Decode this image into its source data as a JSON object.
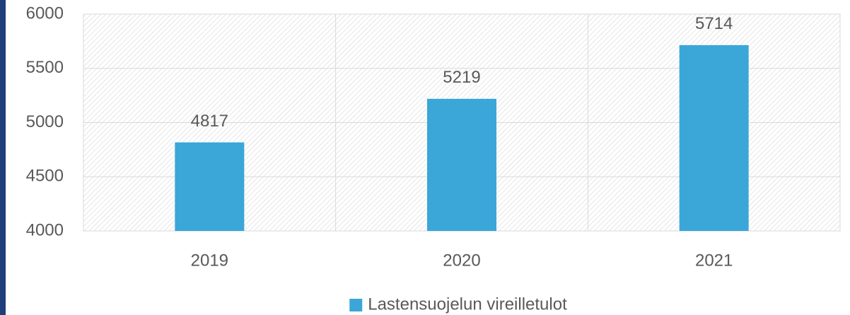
{
  "chart_data": {
    "type": "bar",
    "categories": [
      "2019",
      "2020",
      "2021"
    ],
    "series": [
      {
        "name": "Lastensuojelun vireilletulot",
        "color": "#3ba6d8",
        "values": [
          4817,
          5219,
          5714
        ]
      }
    ],
    "ylim": [
      4000,
      6000
    ],
    "yticks": [
      4000,
      4500,
      5000,
      5500,
      6000
    ],
    "grid": true,
    "legend": "bottom",
    "data_labels": true
  }
}
